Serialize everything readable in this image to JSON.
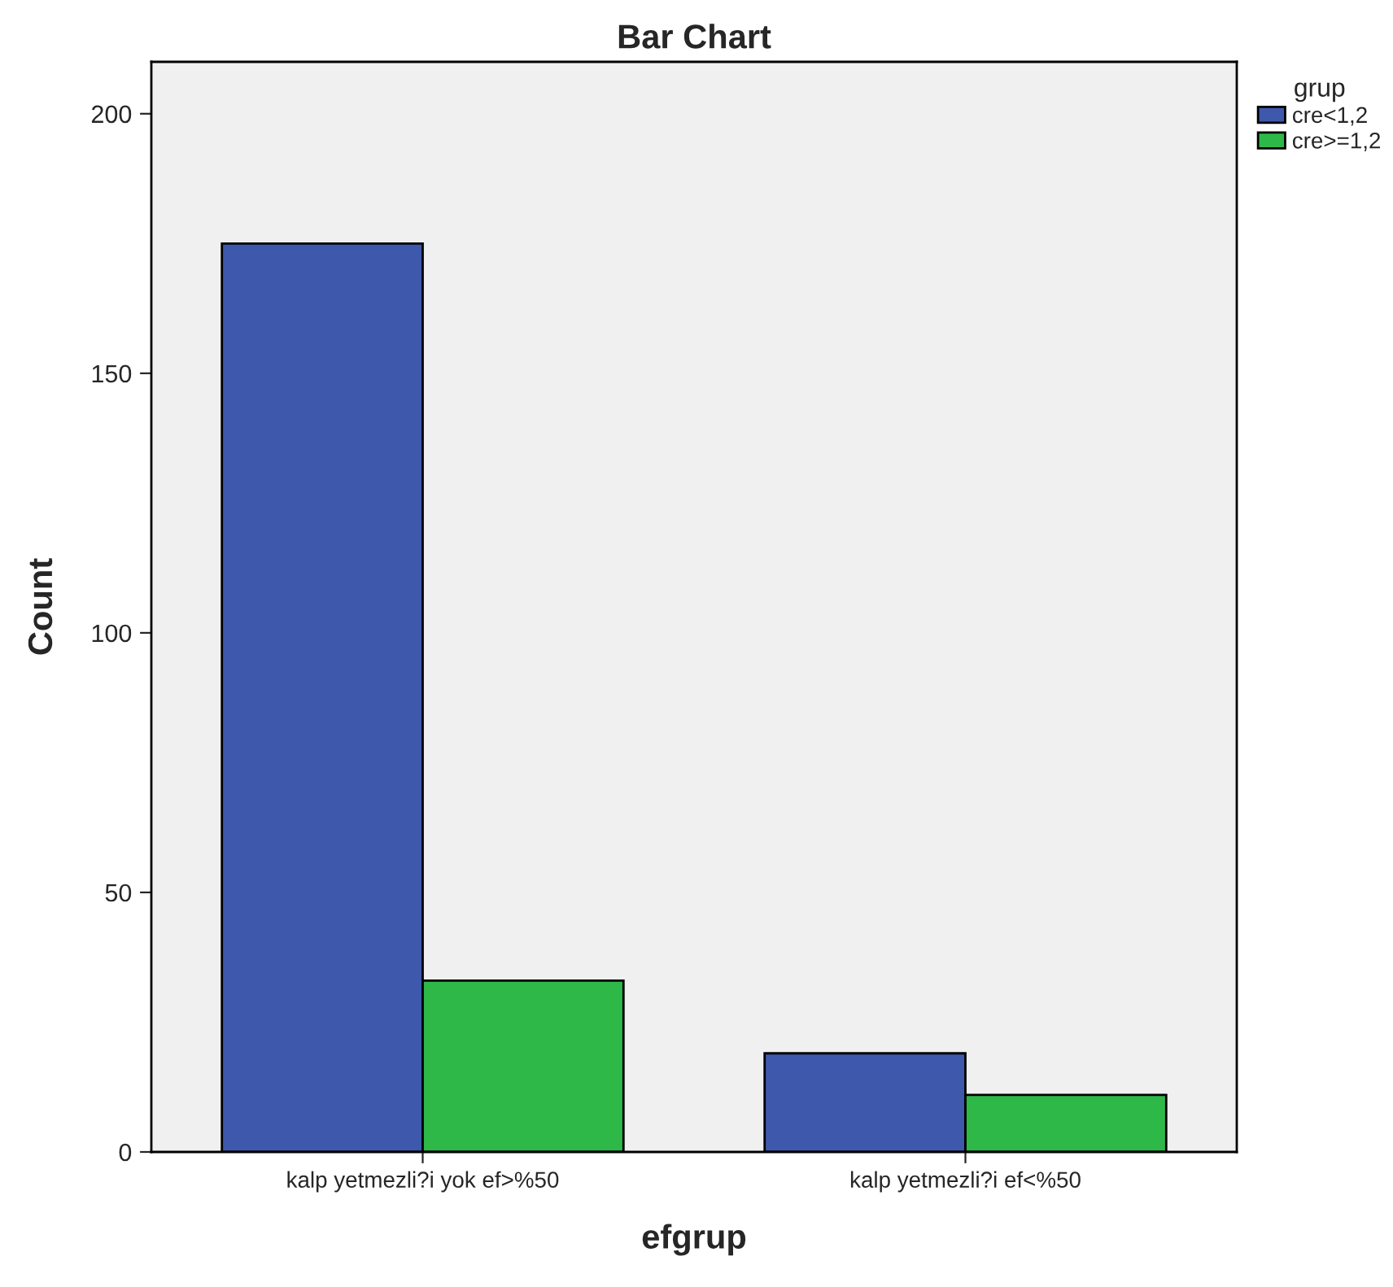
{
  "chart_data": {
    "type": "bar",
    "title": "Bar Chart",
    "xlabel": "efgrup",
    "ylabel": "Count",
    "legend_title": "grup",
    "categories": [
      "kalp yetmezli?i yok ef>%50",
      "kalp yetmezli?i ef<%50"
    ],
    "series": [
      {
        "name": "cre<1,2",
        "color": "#3e58ac",
        "values": [
          175,
          19
        ]
      },
      {
        "name": "cre>=1,2",
        "color": "#2eb848",
        "values": [
          33,
          11
        ]
      }
    ],
    "ylim": [
      0,
      210
    ],
    "yticks": [
      0,
      50,
      100,
      150,
      200
    ],
    "grid": false,
    "legend": "top right"
  }
}
